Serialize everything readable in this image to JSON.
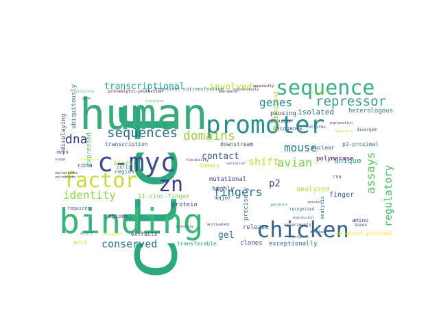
{
  "wordcloud": {
    "words": [
      {
        "text": "ctcf",
        "color": "#2ca780"
      },
      {
        "text": "human",
        "color": "#3aaa7a"
      },
      {
        "text": "binding",
        "color": "#3bb57a"
      },
      {
        "text": "promoter",
        "color": "#2c8c8c"
      },
      {
        "text": "sequence",
        "color": "#3ab089"
      },
      {
        "text": "c-myc",
        "color": "#3a4d8a"
      },
      {
        "text": "chicken",
        "color": "#32648e"
      },
      {
        "text": "factor",
        "color": "#c8d93a"
      },
      {
        "text": "zn",
        "color": "#3d3580"
      },
      {
        "text": "sequences",
        "color": "#2e6e8e"
      },
      {
        "text": "domains",
        "color": "#9ad13d"
      },
      {
        "text": "repressor",
        "color": "#3b9a8c"
      },
      {
        "text": "genes",
        "color": "#23888e"
      },
      {
        "text": "dna",
        "color": "#35377f"
      },
      {
        "text": "mouse",
        "color": "#2a788e"
      },
      {
        "text": "fingers",
        "color": "#2c718e"
      },
      {
        "text": "avian",
        "color": "#7ccf4f"
      },
      {
        "text": "identity",
        "color": "#8bd646"
      },
      {
        "text": "assays",
        "color": "#5cc863"
      },
      {
        "text": "regulatory",
        "color": "#4ac16d"
      },
      {
        "text": "conserved",
        "color": "#2c728e"
      },
      {
        "text": "shift",
        "color": "#b5de2b"
      },
      {
        "text": "transcriptional",
        "color": "#22a785"
      },
      {
        "text": "involved",
        "color": "#b8de29"
      },
      {
        "text": "gel",
        "color": "#2e6f8e"
      },
      {
        "text": "contact",
        "color": "#3a538b"
      },
      {
        "text": "unique",
        "color": "#21918c"
      },
      {
        "text": "p2",
        "color": "#433e85"
      },
      {
        "text": "isolated",
        "color": "#31668e"
      },
      {
        "text": "pausing",
        "color": "#404688"
      },
      {
        "text": "heterologous",
        "color": "#2a788e"
      },
      {
        "text": "expressed",
        "color": "#4ac16d"
      },
      {
        "text": "displaying",
        "color": "#38588c"
      },
      {
        "text": "ubiquitously",
        "color": "#2e6e8e"
      },
      {
        "text": "transcription",
        "color": "#35608d"
      },
      {
        "text": "oncogenes",
        "color": "#3a548c"
      },
      {
        "text": "p2-proximal",
        "color": "#2a778e"
      },
      {
        "text": "polymerase",
        "color": "#471164"
      },
      {
        "text": "downstream",
        "color": "#3b518b"
      },
      {
        "text": "nuclear",
        "color": "#33638d"
      },
      {
        "text": "finger",
        "color": "#3a548c"
      },
      {
        "text": "analyzed",
        "color": "#b2dd2d"
      },
      {
        "text": "highly",
        "color": "#3b528b"
      },
      {
        "text": "major",
        "color": "#38598c"
      },
      {
        "text": "mutational",
        "color": "#433e85"
      },
      {
        "text": "11-zinc-finger",
        "color": "#7ad151"
      },
      {
        "text": "precisely",
        "color": "#2f6c8e"
      },
      {
        "text": "protein",
        "color": "#3d4e8a"
      },
      {
        "text": "regions",
        "color": "#46327e"
      },
      {
        "text": "requires",
        "color": "#38598c"
      },
      {
        "text": "cdna",
        "color": "#2c738e"
      },
      {
        "text": "binds",
        "color": "#7ad151"
      },
      {
        "text": "region",
        "color": "#2e6f8e"
      },
      {
        "text": "cells",
        "color": "#2e6e8e"
      },
      {
        "text": "maps",
        "color": "#482878"
      },
      {
        "text": "acid",
        "color": "#bddf26"
      },
      {
        "text": "clones",
        "color": "#3b528b"
      },
      {
        "text": "release",
        "color": "#38598c"
      },
      {
        "text": "extracts",
        "color": "#443983"
      },
      {
        "text": "transferable",
        "color": "#22a884"
      },
      {
        "text": "exceptionally",
        "color": "#2d708e"
      },
      {
        "text": "promoter-proximal",
        "color": "#fde725"
      },
      {
        "text": "amino",
        "color": "#3e4c8a"
      },
      {
        "text": "rna",
        "color": "#3b528b"
      },
      {
        "text": "analysis",
        "color": "#2c728e"
      },
      {
        "text": "predominant",
        "color": "#a2da37"
      },
      {
        "text": "domain",
        "color": "#c0df25"
      },
      {
        "text": "transient-cotransfection",
        "color": "#2c728e"
      },
      {
        "text": "proteolytic-protection",
        "color": "#440154"
      },
      {
        "text": "successively",
        "color": "#443a83"
      },
      {
        "text": "developed",
        "color": "#d2e21b"
      },
      {
        "text": "explanation",
        "color": "#46337e"
      },
      {
        "text": "diverged",
        "color": "#3b528b"
      },
      {
        "text": "regulator",
        "color": "#c2df23"
      },
      {
        "text": "confirms",
        "color": "#3b528b"
      },
      {
        "text": "proteins",
        "color": "#404688"
      },
      {
        "text": "absent",
        "color": "#2e6e8e"
      },
      {
        "text": "nucleotides",
        "color": "#482475"
      },
      {
        "text": "vertebrate",
        "color": "#3b528b"
      },
      {
        "text": "usage",
        "color": "#2e6e8e"
      },
      {
        "text": "promoters",
        "color": "#fde725"
      },
      {
        "text": "gene",
        "color": "#3b528b"
      },
      {
        "text": "structure",
        "color": "#35b779"
      },
      {
        "text": "flexibility",
        "color": "#482878"
      },
      {
        "text": "insulator",
        "color": "#5ec962"
      },
      {
        "text": "mutating",
        "color": "#3b528b"
      },
      {
        "text": "recognized",
        "color": "#2e6e8e"
      },
      {
        "text": "bases",
        "color": "#3b528b"
      },
      {
        "text": "experiments",
        "color": "#443983"
      },
      {
        "text": "patterns",
        "color": "#2c728e"
      },
      {
        "text": "multivalent",
        "color": "#472c7a"
      },
      {
        "text": "species",
        "color": "#3b528b"
      },
      {
        "text": "expression",
        "color": "#38598c"
      },
      {
        "text": "divergence",
        "color": "#2e6e8e"
      },
      {
        "text": "deleted",
        "color": "#35608d"
      },
      {
        "text": "apparently",
        "color": "#440154"
      },
      {
        "text": "emergence",
        "color": "#46337e"
      },
      {
        "text": "variation",
        "color": "#3b528b"
      },
      {
        "text": "determined",
        "color": "#d8e219"
      },
      {
        "text": "doublestrand",
        "color": "#2e6e8e"
      }
    ]
  }
}
